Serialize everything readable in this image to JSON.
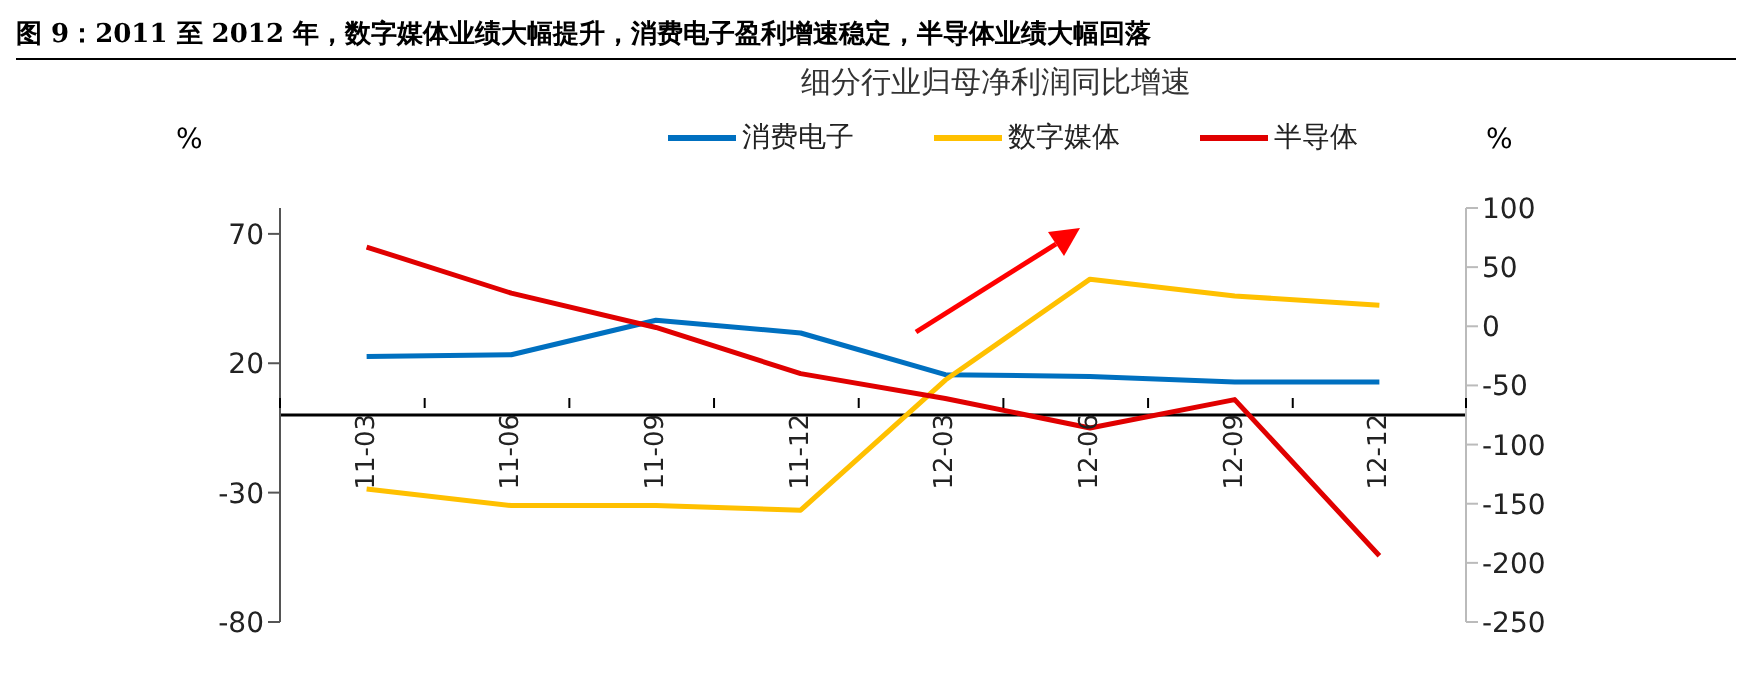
{
  "chart_data": {
    "type": "line",
    "title": "图 9：2011 至 2012 年，数字媒体业绩大幅提升，消费电子盈利增速稳定，半导体业绩大幅回落",
    "subtitle": "细分行业归母净利润同比增速",
    "ylabel": "%",
    "y2label": "%",
    "categories": [
      "11-03",
      "11-06",
      "11-09",
      "11-12",
      "12-03",
      "12-06",
      "12-09",
      "12-12"
    ],
    "series": [
      {
        "name": "消费电子",
        "color": "#0070c0",
        "values": [
          22.6,
          23.3,
          36.6,
          31.7,
          15.6,
          14.9,
          12.8,
          12.8
        ]
      },
      {
        "name": "数字媒体",
        "color": "#ffc000",
        "values": [
          -28.6,
          -35,
          -35,
          -36.8,
          13.5,
          52.5,
          46,
          42.4
        ]
      },
      {
        "name": "半导体",
        "color": "#e00000",
        "axis": "y2",
        "values": [
          67,
          28,
          -1,
          -40,
          -61,
          -86,
          -62,
          -194
        ]
      }
    ],
    "ylim": [
      -80,
      80
    ],
    "yticks": [
      -80,
      -30,
      20,
      70
    ],
    "y2lim": [
      -250,
      100
    ],
    "y2ticks": [
      -250,
      -200,
      -150,
      -100,
      -50,
      0,
      50,
      100
    ],
    "grid": false,
    "legend": "top",
    "marker": "none",
    "line_style": "solid"
  }
}
